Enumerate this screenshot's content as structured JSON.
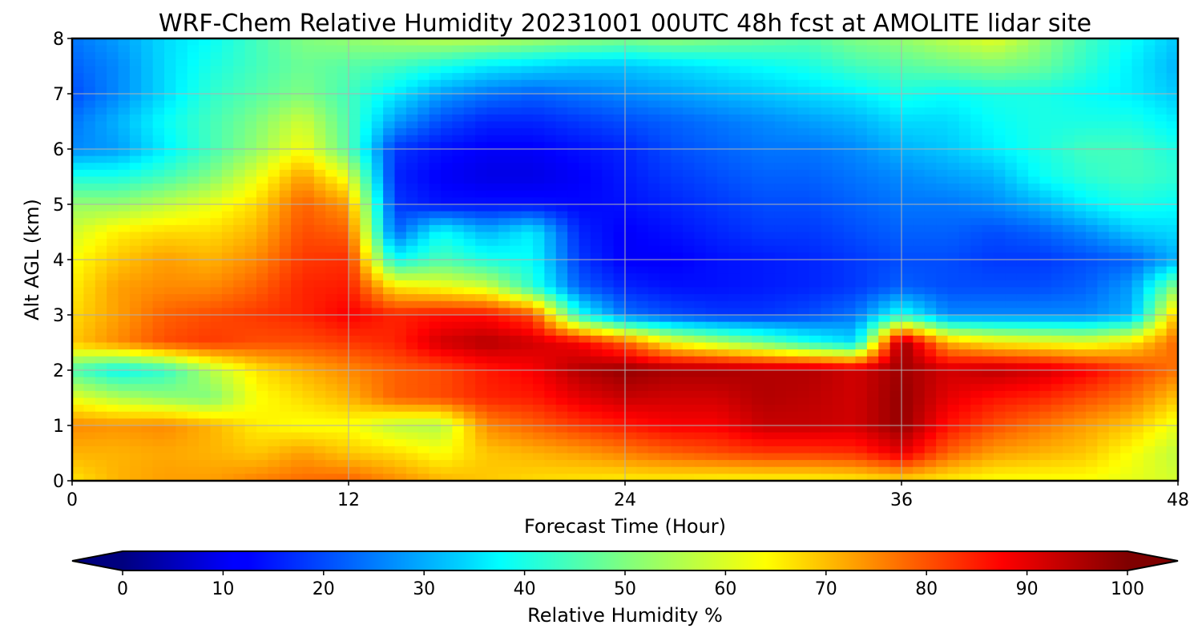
{
  "chart_data": {
    "type": "heatmap",
    "title": "WRF-Chem Relative Humidity 20231001 00UTC 48h fcst at AMOLITE lidar site",
    "xlabel": "Forecast Time (Hour)",
    "ylabel": "Alt AGL (km)",
    "xlim": [
      0,
      48
    ],
    "ylim": [
      0,
      8
    ],
    "x_ticks": [
      "0",
      "12",
      "24",
      "36",
      "48"
    ],
    "y_ticks": [
      "0",
      "1",
      "2",
      "3",
      "4",
      "5",
      "6",
      "7",
      "8"
    ],
    "grid": true,
    "colormap": "jet",
    "colorbar": {
      "label": "Relative Humidity %",
      "range": [
        0,
        100
      ],
      "ticks": [
        "0",
        "10",
        "20",
        "30",
        "40",
        "50",
        "60",
        "70",
        "80",
        "90",
        "100"
      ],
      "extend": "both",
      "placement": "bottom"
    },
    "x": [
      0,
      2,
      4,
      6,
      8,
      10,
      12,
      14,
      16,
      18,
      20,
      22,
      24,
      26,
      28,
      30,
      32,
      34,
      36,
      38,
      40,
      42,
      44,
      46,
      48
    ],
    "y": [
      0,
      0.5,
      1,
      1.5,
      2,
      2.5,
      3,
      3.5,
      4,
      4.5,
      5,
      5.5,
      6,
      6.5,
      7,
      7.5,
      8
    ],
    "z": [
      [
        65,
        70,
        72,
        72,
        75,
        77,
        78,
        74,
        70,
        68,
        66,
        65,
        64,
        64,
        63,
        63,
        63,
        64,
        66,
        64,
        62,
        62,
        62,
        60,
        58
      ],
      [
        70,
        70,
        71,
        70,
        68,
        72,
        68,
        66,
        62,
        68,
        70,
        72,
        75,
        78,
        80,
        82,
        82,
        83,
        90,
        78,
        72,
        70,
        68,
        62,
        56
      ],
      [
        74,
        73,
        74,
        70,
        64,
        62,
        62,
        56,
        55,
        74,
        78,
        82,
        85,
        88,
        88,
        93,
        93,
        92,
        98,
        86,
        80,
        76,
        72,
        68,
        60
      ],
      [
        60,
        55,
        52,
        50,
        62,
        66,
        70,
        78,
        80,
        84,
        85,
        90,
        93,
        92,
        92,
        95,
        94,
        92,
        98,
        90,
        86,
        84,
        80,
        76,
        68
      ],
      [
        45,
        38,
        42,
        55,
        65,
        70,
        74,
        78,
        80,
        85,
        88,
        95,
        98,
        96,
        96,
        95,
        95,
        92,
        97,
        92,
        94,
        92,
        88,
        82,
        76
      ],
      [
        68,
        74,
        80,
        82,
        80,
        80,
        82,
        84,
        92,
        95,
        92,
        88,
        78,
        62,
        55,
        48,
        40,
        34,
        98,
        70,
        64,
        62,
        60,
        65,
        78
      ],
      [
        66,
        72,
        78,
        80,
        82,
        84,
        88,
        84,
        86,
        86,
        80,
        40,
        24,
        20,
        18,
        18,
        20,
        24,
        40,
        26,
        26,
        26,
        26,
        30,
        70
      ],
      [
        64,
        72,
        74,
        74,
        78,
        84,
        85,
        65,
        62,
        58,
        42,
        22,
        16,
        14,
        14,
        15,
        16,
        18,
        22,
        20,
        20,
        20,
        22,
        28,
        52
      ],
      [
        62,
        68,
        72,
        70,
        74,
        82,
        83,
        38,
        45,
        40,
        38,
        18,
        12,
        12,
        14,
        15,
        16,
        18,
        20,
        20,
        18,
        18,
        20,
        22,
        30
      ],
      [
        58,
        64,
        66,
        66,
        70,
        80,
        78,
        22,
        38,
        30,
        36,
        16,
        12,
        14,
        16,
        18,
        18,
        20,
        22,
        22,
        20,
        22,
        26,
        32,
        34
      ],
      [
        52,
        52,
        56,
        60,
        66,
        78,
        72,
        18,
        14,
        14,
        14,
        13,
        14,
        16,
        18,
        20,
        20,
        22,
        24,
        24,
        26,
        30,
        36,
        40,
        38
      ],
      [
        40,
        40,
        44,
        50,
        60,
        72,
        60,
        16,
        12,
        10,
        10,
        12,
        15,
        18,
        20,
        22,
        22,
        24,
        26,
        28,
        30,
        38,
        42,
        44,
        42
      ],
      [
        26,
        28,
        36,
        44,
        52,
        62,
        46,
        18,
        14,
        12,
        12,
        14,
        16,
        20,
        22,
        24,
        24,
        26,
        30,
        32,
        36,
        40,
        44,
        44,
        40
      ],
      [
        24,
        30,
        38,
        44,
        50,
        58,
        45,
        28,
        20,
        16,
        16,
        18,
        20,
        22,
        24,
        26,
        28,
        30,
        34,
        34,
        38,
        40,
        40,
        40,
        36
      ],
      [
        20,
        26,
        34,
        42,
        46,
        50,
        44,
        36,
        28,
        24,
        22,
        24,
        26,
        28,
        30,
        32,
        34,
        36,
        40,
        38,
        40,
        40,
        38,
        36,
        32
      ],
      [
        22,
        26,
        34,
        40,
        44,
        48,
        46,
        44,
        40,
        36,
        34,
        32,
        32,
        34,
        36,
        38,
        40,
        44,
        46,
        48,
        50,
        48,
        42,
        36,
        30
      ],
      [
        24,
        28,
        34,
        38,
        44,
        50,
        52,
        54,
        56,
        56,
        54,
        52,
        50,
        52,
        50,
        48,
        46,
        50,
        52,
        56,
        60,
        52,
        44,
        38,
        32
      ]
    ]
  }
}
